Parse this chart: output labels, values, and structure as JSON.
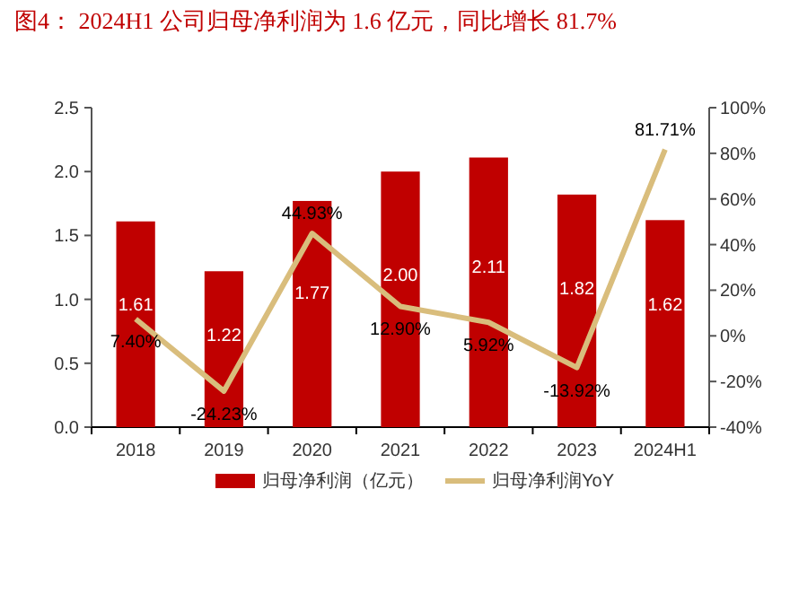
{
  "chart_data": {
    "type": "bar",
    "title": "图4：  2024H1 公司归母净利润为 1.6 亿元，同比增长 81.7%",
    "categories": [
      "2018",
      "2019",
      "2020",
      "2021",
      "2022",
      "2023",
      "2024H1"
    ],
    "series": [
      {
        "name": "归母净利润（亿元）",
        "color": "#c00000",
        "values": [
          1.61,
          1.22,
          1.77,
          2.0,
          2.11,
          1.82,
          1.62
        ],
        "value_labels": [
          "1.61",
          "1.22",
          "1.77",
          "2.00",
          "2.11",
          "1.82",
          "1.62"
        ]
      },
      {
        "name": "归母净利润YoY",
        "type": "line",
        "axis": "y2",
        "color": "#d9bd7c",
        "values": [
          7.4,
          -24.23,
          44.93,
          12.9,
          5.92,
          -13.92,
          81.71
        ],
        "value_labels": [
          "7.40%",
          "-24.23%",
          "44.93%",
          "12.90%",
          "5.92%",
          "-13.92%",
          "81.71%"
        ]
      }
    ],
    "ylim": [
      0,
      2.5
    ],
    "yticks": [
      {
        "value": 0,
        "label": "0.0"
      },
      0.5,
      {
        "value": 1,
        "label": "1.0"
      },
      1.5,
      {
        "value": 2,
        "label": "2.0"
      },
      2.5
    ],
    "y2lim": [
      -40,
      100
    ],
    "y2ticks": [
      {
        "value": -40,
        "label": "-40%"
      },
      {
        "value": -20,
        "label": "-20%"
      },
      {
        "value": 0,
        "label": "0%"
      },
      {
        "value": 20,
        "label": "20%"
      },
      {
        "value": 40,
        "label": "40%"
      },
      {
        "value": 60,
        "label": "60%"
      },
      {
        "value": 80,
        "label": "80%"
      },
      {
        "value": 100,
        "label": "100%"
      }
    ],
    "legend": "bottom",
    "grid": false
  }
}
